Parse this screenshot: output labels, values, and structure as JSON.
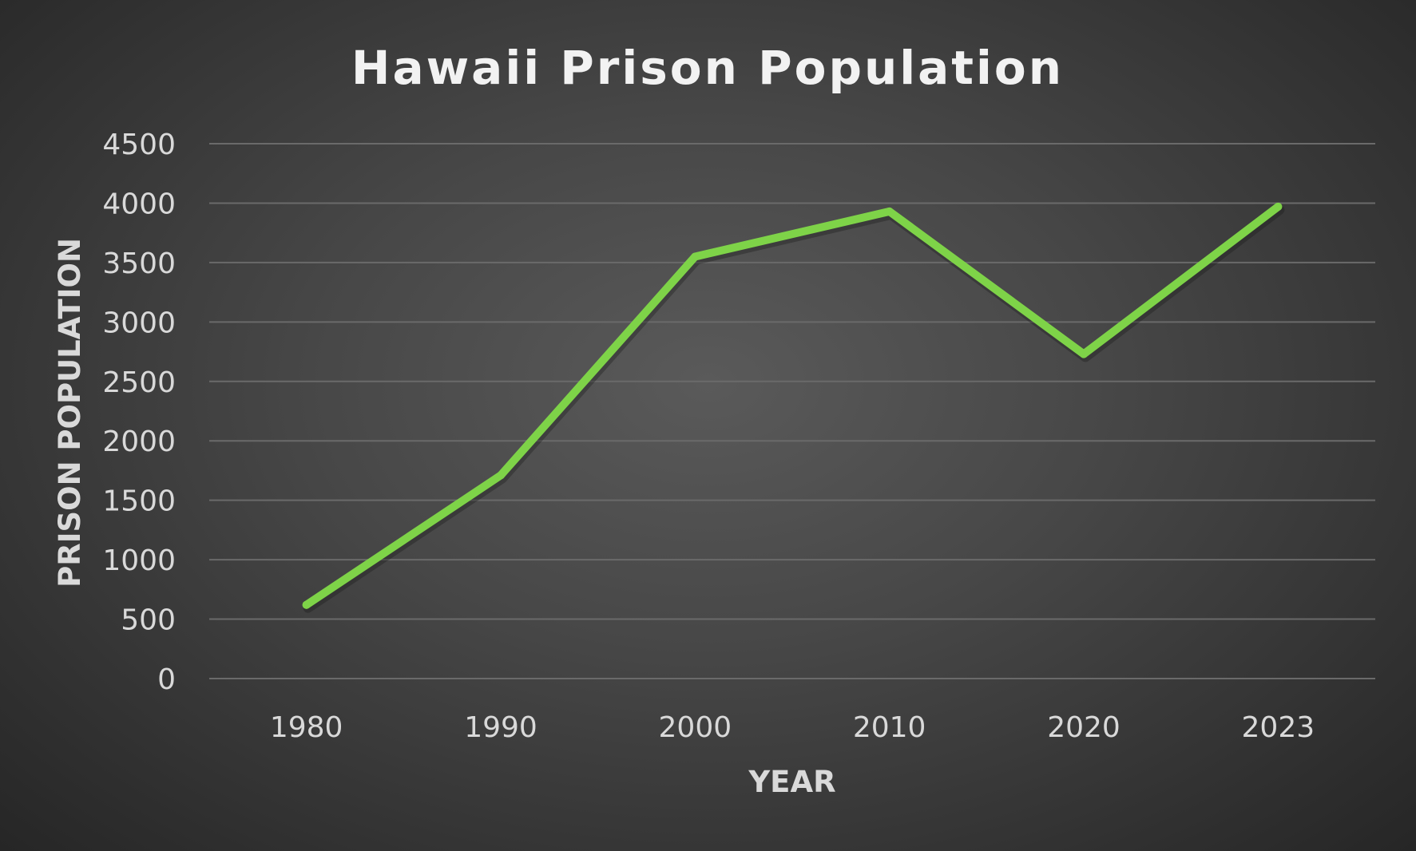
{
  "chart_data": {
    "type": "line",
    "title": "Hawaii Prison Population",
    "xlabel": "YEAR",
    "ylabel": "PRISON POPULATION",
    "categories": [
      "1980",
      "1990",
      "2000",
      "2010",
      "2020",
      "2023"
    ],
    "series": [
      {
        "values": [
          620,
          1710,
          3550,
          3930,
          2730,
          3970
        ],
        "color": "#7ed348"
      }
    ],
    "ylim": [
      0,
      4500
    ],
    "yticks": [
      "0",
      "500",
      "1000",
      "1500",
      "2000",
      "2500",
      "3000",
      "3500",
      "4000",
      "4500"
    ],
    "grid": true,
    "legend": "none"
  }
}
